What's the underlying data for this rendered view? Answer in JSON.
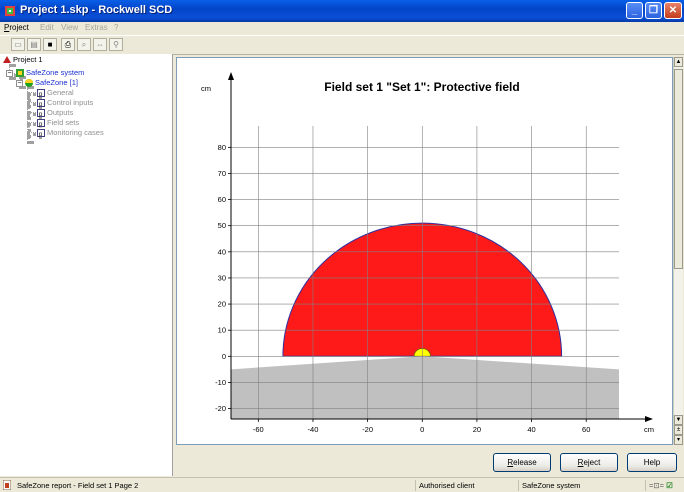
{
  "window": {
    "title": "Project 1.skp - Rockwell SCD"
  },
  "menu": [
    {
      "label": "Project",
      "enabled": true
    },
    {
      "label": "Edit",
      "enabled": false
    },
    {
      "label": "View",
      "enabled": false
    },
    {
      "label": "Extras",
      "enabled": false
    },
    {
      "label": "?",
      "enabled": false
    }
  ],
  "toolbar": [
    "new-icon",
    "open-icon",
    "save-icon",
    "print-icon",
    "find-icon",
    "transfer-icon",
    "zoom-icon"
  ],
  "tree": {
    "root": "Project 1",
    "system": "SafeZone system",
    "device": "SafeZone [1]",
    "children": [
      "General",
      "Control inputs",
      "Outputs",
      "Field sets",
      "Monitoring cases"
    ]
  },
  "chart_data": {
    "type": "area",
    "title": "Field set 1 \"Set 1\": Protective field",
    "xlabel": "cm",
    "ylabel": "cm",
    "xlim": [
      -70,
      72
    ],
    "ylim": [
      -24,
      92
    ],
    "x_ticks": [
      -60,
      -40,
      -20,
      0,
      20,
      40,
      60
    ],
    "y_ticks": [
      -20,
      -10,
      0,
      10,
      20,
      30,
      40,
      50,
      60,
      70,
      80
    ],
    "grid": true,
    "protective_field": {
      "shape": "semicircle",
      "center": [
        0,
        0
      ],
      "radius": 51,
      "color": "#ff1a1a"
    },
    "sensor": {
      "shape": "semicircle",
      "center": [
        0,
        0
      ],
      "radius": 3,
      "color": "#ffff00"
    },
    "shadow_region": {
      "points": [
        [
          -70,
          -5
        ],
        [
          0,
          0
        ],
        [
          72,
          -5
        ],
        [
          72,
          -24
        ],
        [
          -70,
          -24
        ]
      ],
      "color": "#c0c0c0"
    }
  },
  "buttons": {
    "release": "Release",
    "reject": "Reject",
    "help": "Help"
  },
  "status": {
    "report": "SafeZone report - Field set 1  Page 2",
    "user": "Authorised client",
    "device": "SafeZone system"
  },
  "colors": {
    "titlebar": "#0a4fd6",
    "tree_link": "#1a2fd0",
    "field": "#ff1a1a"
  }
}
